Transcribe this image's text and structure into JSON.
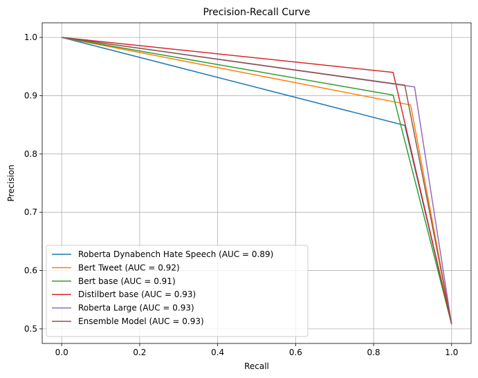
{
  "chart_data": {
    "type": "line",
    "title": "Precision-Recall Curve",
    "xlabel": "Recall",
    "ylabel": "Precision",
    "xlim": [
      -0.05,
      1.05
    ],
    "ylim": [
      0.475,
      1.025
    ],
    "xticks": [
      0.0,
      0.2,
      0.4,
      0.6,
      0.8,
      1.0
    ],
    "xtick_labels": [
      "0.0",
      "0.2",
      "0.4",
      "0.6",
      "0.8",
      "1.0"
    ],
    "yticks": [
      0.5,
      0.6,
      0.7,
      0.8,
      0.9,
      1.0
    ],
    "ytick_labels": [
      "0.5",
      "0.6",
      "0.7",
      "0.8",
      "0.9",
      "1.0"
    ],
    "grid": true,
    "legend_position": "lower-left",
    "series": [
      {
        "name": "Roberta Dynabench Hate Speech (AUC = 0.89)",
        "color": "#1f77b4",
        "x": [
          0.0,
          0.88,
          1.0
        ],
        "y": [
          1.0,
          0.849,
          0.508
        ]
      },
      {
        "name": "Bert Tweet (AUC = 0.92)",
        "color": "#ff7f0e",
        "x": [
          0.0,
          0.895,
          1.0
        ],
        "y": [
          1.0,
          0.884,
          0.508
        ]
      },
      {
        "name": "Bert base (AUC = 0.91)",
        "color": "#2ca02c",
        "x": [
          0.0,
          0.85,
          1.0
        ],
        "y": [
          1.0,
          0.901,
          0.508
        ]
      },
      {
        "name": "Distilbert base (AUC = 0.93)",
        "color": "#d62728",
        "x": [
          0.0,
          0.85,
          1.0
        ],
        "y": [
          1.0,
          0.94,
          0.508
        ]
      },
      {
        "name": "Roberta Large (AUC = 0.93)",
        "color": "#9467bd",
        "x": [
          0.0,
          0.905,
          1.0
        ],
        "y": [
          1.0,
          0.915,
          0.508
        ]
      },
      {
        "name": "Ensemble Model (AUC = 0.93)",
        "color": "#8c564b",
        "x": [
          0.0,
          0.88,
          1.0
        ],
        "y": [
          1.0,
          0.918,
          0.508
        ]
      }
    ]
  }
}
